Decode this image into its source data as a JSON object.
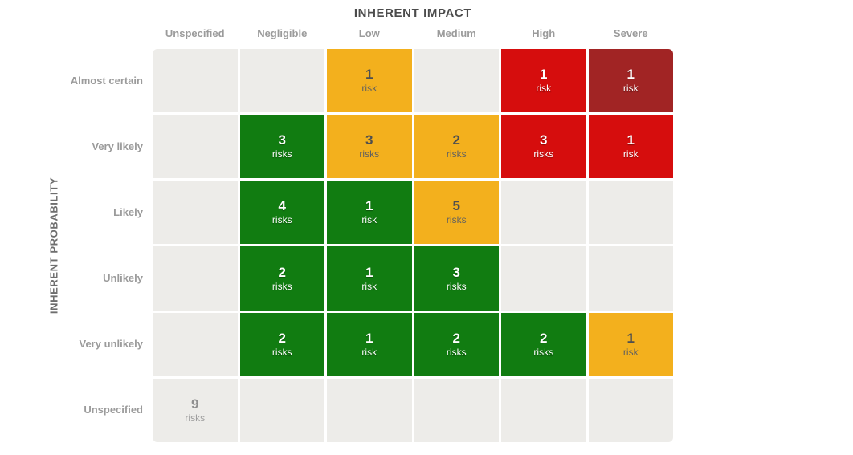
{
  "matrix": {
    "title": "INHERENT IMPACT",
    "y_axis_label": "INHERENT PROBABILITY",
    "columns": [
      "Unspecified",
      "Negligible",
      "Low",
      "Medium",
      "High",
      "Severe"
    ],
    "rows": [
      "Almost certain",
      "Very likely",
      "Likely",
      "Unlikely",
      "Very unlikely",
      "Unspecified"
    ],
    "levels": {
      "empty": {
        "bg": "#edece9"
      },
      "green": {
        "bg": "#117c11",
        "num": "#ffffff",
        "unit": "#ffffff",
        "light": true
      },
      "orange": {
        "bg": "#f3b01d",
        "num": "#4f4f4f",
        "unit": "#606060",
        "light": false
      },
      "red": {
        "bg": "#d60d0d",
        "num": "#ffffff",
        "unit": "#ffffff",
        "light": true
      },
      "darkred": {
        "bg": "#a12424",
        "num": "#ffffff",
        "unit": "#ffffff",
        "light": true
      },
      "neutral": {
        "bg": "#edece9",
        "num": "#8f8f8f",
        "unit": "#9d9d9d",
        "light": false
      }
    },
    "cells": [
      [
        {
          "level": "empty"
        },
        {
          "level": "empty"
        },
        {
          "count": "1",
          "unit": "risk",
          "level": "orange"
        },
        {
          "level": "empty"
        },
        {
          "count": "1",
          "unit": "risk",
          "level": "red"
        },
        {
          "count": "1",
          "unit": "risk",
          "level": "darkred"
        }
      ],
      [
        {
          "level": "empty"
        },
        {
          "count": "3",
          "unit": "risks",
          "level": "green"
        },
        {
          "count": "3",
          "unit": "risks",
          "level": "orange"
        },
        {
          "count": "2",
          "unit": "risks",
          "level": "orange"
        },
        {
          "count": "3",
          "unit": "risks",
          "level": "red"
        },
        {
          "count": "1",
          "unit": "risk",
          "level": "red"
        }
      ],
      [
        {
          "level": "empty"
        },
        {
          "count": "4",
          "unit": "risks",
          "level": "green"
        },
        {
          "count": "1",
          "unit": "risk",
          "level": "green"
        },
        {
          "count": "5",
          "unit": "risks",
          "level": "orange"
        },
        {
          "level": "empty"
        },
        {
          "level": "empty"
        }
      ],
      [
        {
          "level": "empty"
        },
        {
          "count": "2",
          "unit": "risks",
          "level": "green"
        },
        {
          "count": "1",
          "unit": "risk",
          "level": "green"
        },
        {
          "count": "3",
          "unit": "risks",
          "level": "green"
        },
        {
          "level": "empty"
        },
        {
          "level": "empty"
        }
      ],
      [
        {
          "level": "empty"
        },
        {
          "count": "2",
          "unit": "risks",
          "level": "green"
        },
        {
          "count": "1",
          "unit": "risk",
          "level": "green"
        },
        {
          "count": "2",
          "unit": "risks",
          "level": "green"
        },
        {
          "count": "2",
          "unit": "risks",
          "level": "green"
        },
        {
          "count": "1",
          "unit": "risk",
          "level": "orange"
        }
      ],
      [
        {
          "count": "9",
          "unit": "risks",
          "level": "neutral"
        },
        {
          "level": "empty"
        },
        {
          "level": "empty"
        },
        {
          "level": "empty"
        },
        {
          "level": "empty"
        },
        {
          "level": "empty"
        }
      ]
    ]
  },
  "chart_data": {
    "type": "heatmap",
    "title": "INHERENT IMPACT",
    "xlabel": "INHERENT IMPACT",
    "ylabel": "INHERENT PROBABILITY",
    "x_categories": [
      "Unspecified",
      "Negligible",
      "Low",
      "Medium",
      "High",
      "Severe"
    ],
    "y_categories": [
      "Almost certain",
      "Very likely",
      "Likely",
      "Unlikely",
      "Very unlikely",
      "Unspecified"
    ],
    "values": [
      [
        null,
        null,
        1,
        null,
        1,
        1
      ],
      [
        null,
        3,
        3,
        2,
        3,
        1
      ],
      [
        null,
        4,
        1,
        5,
        null,
        null
      ],
      [
        null,
        2,
        1,
        3,
        null,
        null
      ],
      [
        null,
        2,
        1,
        2,
        2,
        1
      ],
      [
        9,
        null,
        null,
        null,
        null,
        null
      ]
    ],
    "cell_severity": [
      [
        "empty",
        "empty",
        "orange",
        "empty",
        "red",
        "darkred"
      ],
      [
        "empty",
        "green",
        "orange",
        "orange",
        "red",
        "red"
      ],
      [
        "empty",
        "green",
        "green",
        "orange",
        "empty",
        "empty"
      ],
      [
        "empty",
        "green",
        "green",
        "green",
        "empty",
        "empty"
      ],
      [
        "empty",
        "green",
        "green",
        "green",
        "green",
        "orange"
      ],
      [
        "neutral",
        "empty",
        "empty",
        "empty",
        "empty",
        "empty"
      ]
    ],
    "severity_colors": {
      "empty": "#edece9",
      "green": "#117c11",
      "orange": "#f3b01d",
      "red": "#d60d0d",
      "darkred": "#a12424",
      "neutral": "#edece9"
    },
    "unit_singular": "risk",
    "unit_plural": "risks",
    "grid": false,
    "legend": false
  }
}
